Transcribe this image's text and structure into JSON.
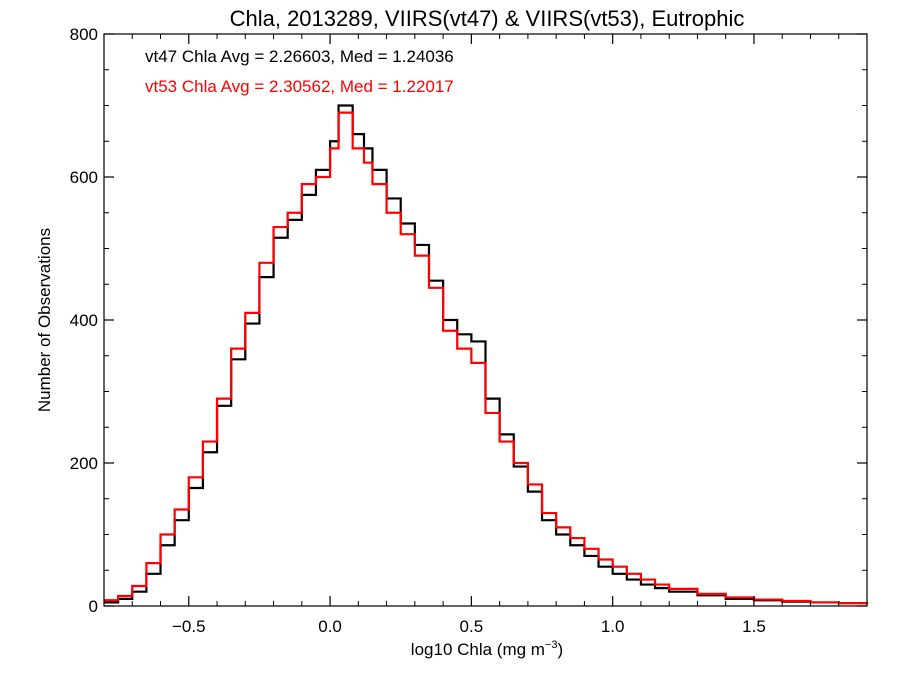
{
  "chart_data": {
    "type": "step-histogram",
    "title": "Chla, 2013289, VIIRS(vt47) & VIIRS(vt53), Eutrophic",
    "xlabel": "log10 Chla (mg m",
    "xlabel_sup": "−3",
    "xlabel_close": ")",
    "ylabel": "Number of Observations",
    "xlim": [
      -0.8,
      1.9
    ],
    "ylim": [
      0,
      800
    ],
    "x_ticks": [
      -0.5,
      0.0,
      0.5,
      1.0,
      1.5
    ],
    "x_tick_labels": [
      "−0.5",
      "0.0",
      "0.5",
      "1.0",
      "1.5"
    ],
    "y_ticks": [
      0,
      200,
      400,
      600,
      800
    ],
    "y_tick_labels": [
      "0",
      "200",
      "400",
      "600",
      "800"
    ],
    "annotations": [
      {
        "text": "vt47 Chla Avg = 2.26603, Med = 1.24036",
        "color": "#000000"
      },
      {
        "text": "vt53 Chla Avg = 2.30562, Med = 1.22017",
        "color": "#ff0000"
      }
    ],
    "series": [
      {
        "color": "#000000",
        "points": [
          [
            -0.8,
            5
          ],
          [
            -0.75,
            10
          ],
          [
            -0.7,
            20
          ],
          [
            -0.65,
            45
          ],
          [
            -0.6,
            85
          ],
          [
            -0.55,
            120
          ],
          [
            -0.5,
            165
          ],
          [
            -0.45,
            215
          ],
          [
            -0.4,
            280
          ],
          [
            -0.35,
            345
          ],
          [
            -0.3,
            395
          ],
          [
            -0.25,
            460
          ],
          [
            -0.2,
            515
          ],
          [
            -0.15,
            540
          ],
          [
            -0.1,
            575
          ],
          [
            -0.05,
            610
          ],
          [
            0.0,
            650
          ],
          [
            0.03,
            700
          ],
          [
            0.08,
            660
          ],
          [
            0.12,
            640
          ],
          [
            0.15,
            610
          ],
          [
            0.2,
            570
          ],
          [
            0.25,
            535
          ],
          [
            0.3,
            505
          ],
          [
            0.35,
            455
          ],
          [
            0.4,
            400
          ],
          [
            0.45,
            380
          ],
          [
            0.5,
            370
          ],
          [
            0.55,
            290
          ],
          [
            0.6,
            240
          ],
          [
            0.65,
            195
          ],
          [
            0.7,
            160
          ],
          [
            0.75,
            120
          ],
          [
            0.8,
            100
          ],
          [
            0.85,
            85
          ],
          [
            0.9,
            70
          ],
          [
            0.95,
            55
          ],
          [
            1.0,
            45
          ],
          [
            1.05,
            37
          ],
          [
            1.1,
            30
          ],
          [
            1.15,
            25
          ],
          [
            1.2,
            20
          ],
          [
            1.3,
            15
          ],
          [
            1.4,
            10
          ],
          [
            1.5,
            8
          ],
          [
            1.6,
            6
          ],
          [
            1.7,
            5
          ],
          [
            1.8,
            4
          ],
          [
            1.9,
            3
          ]
        ]
      },
      {
        "color": "#ff0000",
        "points": [
          [
            -0.8,
            8
          ],
          [
            -0.75,
            14
          ],
          [
            -0.7,
            28
          ],
          [
            -0.65,
            60
          ],
          [
            -0.6,
            100
          ],
          [
            -0.55,
            135
          ],
          [
            -0.5,
            180
          ],
          [
            -0.45,
            230
          ],
          [
            -0.4,
            290
          ],
          [
            -0.35,
            360
          ],
          [
            -0.3,
            410
          ],
          [
            -0.25,
            480
          ],
          [
            -0.2,
            530
          ],
          [
            -0.15,
            550
          ],
          [
            -0.1,
            590
          ],
          [
            -0.05,
            600
          ],
          [
            0.0,
            640
          ],
          [
            0.03,
            690
          ],
          [
            0.08,
            640
          ],
          [
            0.12,
            620
          ],
          [
            0.15,
            590
          ],
          [
            0.2,
            550
          ],
          [
            0.25,
            520
          ],
          [
            0.3,
            490
          ],
          [
            0.35,
            445
          ],
          [
            0.4,
            385
          ],
          [
            0.45,
            360
          ],
          [
            0.5,
            340
          ],
          [
            0.55,
            270
          ],
          [
            0.6,
            230
          ],
          [
            0.65,
            200
          ],
          [
            0.7,
            170
          ],
          [
            0.75,
            130
          ],
          [
            0.8,
            110
          ],
          [
            0.85,
            95
          ],
          [
            0.9,
            80
          ],
          [
            0.95,
            65
          ],
          [
            1.0,
            55
          ],
          [
            1.05,
            45
          ],
          [
            1.1,
            37
          ],
          [
            1.15,
            30
          ],
          [
            1.2,
            24
          ],
          [
            1.3,
            17
          ],
          [
            1.4,
            12
          ],
          [
            1.5,
            9
          ],
          [
            1.6,
            7
          ],
          [
            1.7,
            5
          ],
          [
            1.8,
            4
          ],
          [
            1.9,
            3
          ]
        ]
      }
    ]
  }
}
